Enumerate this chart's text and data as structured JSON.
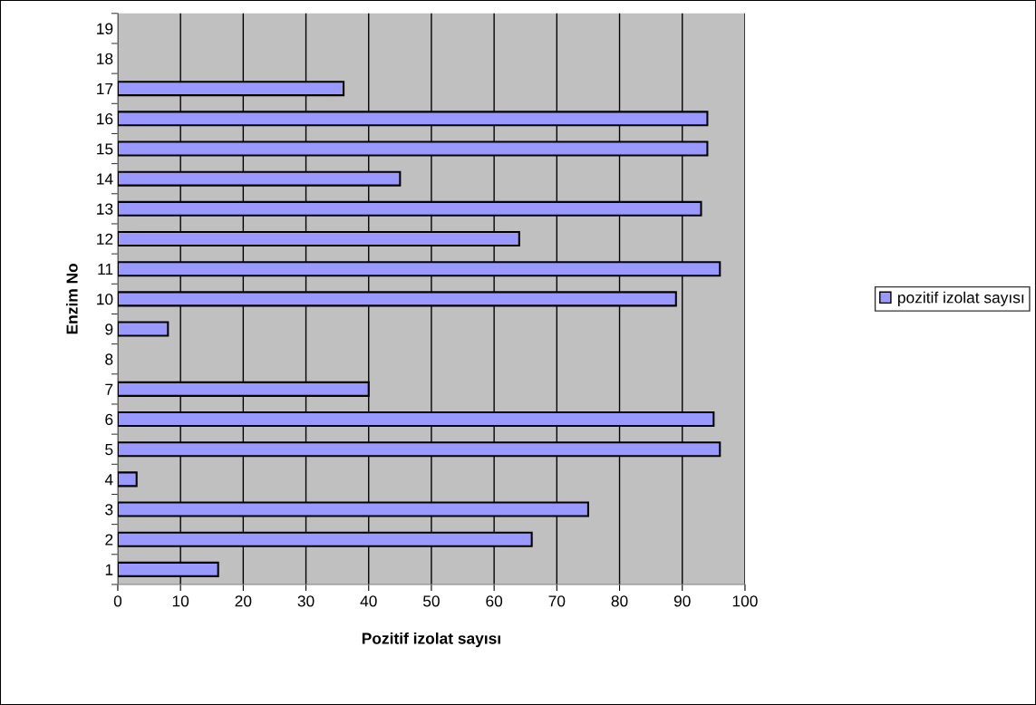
{
  "chart_data": {
    "type": "bar",
    "orientation": "horizontal",
    "xlabel": "Pozitif izolat sayısı",
    "ylabel": "Enzim No",
    "categories": [
      "19",
      "18",
      "17",
      "16",
      "15",
      "14",
      "13",
      "12",
      "11",
      "10",
      "9",
      "8",
      "7",
      "6",
      "5",
      "4",
      "3",
      "2",
      "1"
    ],
    "series": [
      {
        "name": "pozitif izolat sayısı",
        "color": "#9999ff",
        "values": [
          null,
          null,
          36,
          94,
          94,
          45,
          93,
          64,
          96,
          89,
          8,
          null,
          40,
          95,
          96,
          3,
          75,
          66,
          16
        ]
      }
    ],
    "xlim": [
      0,
      100
    ],
    "xticks": [
      0,
      10,
      20,
      30,
      40,
      50,
      60,
      70,
      80,
      90,
      100
    ],
    "grid": "x",
    "legend": "right"
  }
}
